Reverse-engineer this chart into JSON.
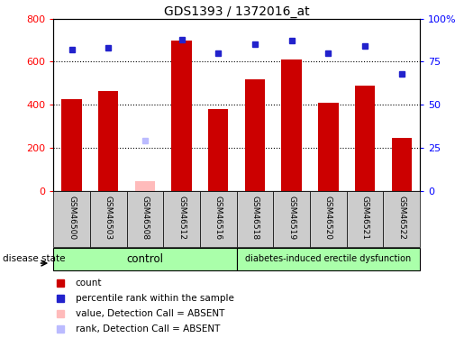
{
  "title": "GDS1393 / 1372016_at",
  "samples": [
    "GSM46500",
    "GSM46503",
    "GSM46508",
    "GSM46512",
    "GSM46516",
    "GSM46518",
    "GSM46519",
    "GSM46520",
    "GSM46521",
    "GSM46522"
  ],
  "counts": [
    425,
    465,
    null,
    700,
    380,
    520,
    610,
    410,
    490,
    248
  ],
  "percentile_ranks": [
    82,
    83,
    null,
    88,
    80,
    85,
    87,
    80,
    84,
    68
  ],
  "absent_count": [
    null,
    null,
    45,
    null,
    null,
    null,
    null,
    null,
    null,
    null
  ],
  "absent_rank": [
    null,
    null,
    29,
    null,
    null,
    null,
    null,
    null,
    null,
    null
  ],
  "control_indices": [
    0,
    1,
    2,
    3,
    4
  ],
  "disease_indices": [
    5,
    6,
    7,
    8,
    9
  ],
  "control_label": "control",
  "disease_label": "diabetes-induced erectile dysfunction",
  "disease_state_label": "disease state",
  "left_ylim": [
    0,
    800
  ],
  "right_ylim": [
    0,
    100
  ],
  "left_yticks": [
    0,
    200,
    400,
    600,
    800
  ],
  "right_yticks": [
    0,
    25,
    50,
    75,
    100
  ],
  "right_yticklabels": [
    "0",
    "25",
    "50",
    "75",
    "100%"
  ],
  "bar_color": "#cc0000",
  "dot_color": "#2222cc",
  "absent_bar_color": "#ffbbbb",
  "absent_dot_color": "#bbbbff",
  "bg_color": "#ffffff",
  "tick_label_bg": "#cccccc",
  "control_bg": "#aaffaa",
  "disease_bg": "#aaffaa",
  "grid_color": "#000000"
}
